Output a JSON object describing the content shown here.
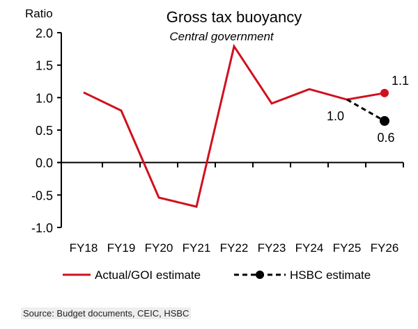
{
  "chart_data": {
    "type": "line",
    "title": "Gross tax buoyancy",
    "subtitle": "Central government",
    "ylabel": "Ratio",
    "xlabel": "",
    "ylim": [
      -1.0,
      2.0
    ],
    "yticks": [
      "2.0",
      "1.5",
      "1.0",
      "0.5",
      "0.0",
      "-0.5",
      "-1.0"
    ],
    "ytick_values": [
      2.0,
      1.5,
      1.0,
      0.5,
      0.0,
      -0.5,
      -1.0
    ],
    "categories": [
      "FY18",
      "FY19",
      "FY20",
      "FY21",
      "FY22",
      "FY23",
      "FY24",
      "FY25",
      "FY26"
    ],
    "series": [
      {
        "name": "Actual/GOI estimate",
        "color": "#d0101e",
        "style": "solid",
        "values": [
          1.08,
          0.8,
          -0.54,
          -0.68,
          1.79,
          0.91,
          1.13,
          0.97,
          1.07
        ]
      },
      {
        "name": "HSBC estimate",
        "color": "#000000",
        "style": "dashed",
        "values": [
          null,
          null,
          null,
          null,
          null,
          null,
          null,
          0.97,
          0.64
        ]
      }
    ],
    "annotations": [
      {
        "text": "1.1",
        "category": "FY26",
        "series": "Actual/GOI estimate"
      },
      {
        "text": "1.0",
        "category": "FY25",
        "series": "HSBC estimate"
      },
      {
        "text": "0.6",
        "category": "FY26",
        "series": "HSBC estimate"
      }
    ],
    "legend": "bottom",
    "grid": false
  },
  "source": "Source: Budget documents, CEIC, HSBC"
}
